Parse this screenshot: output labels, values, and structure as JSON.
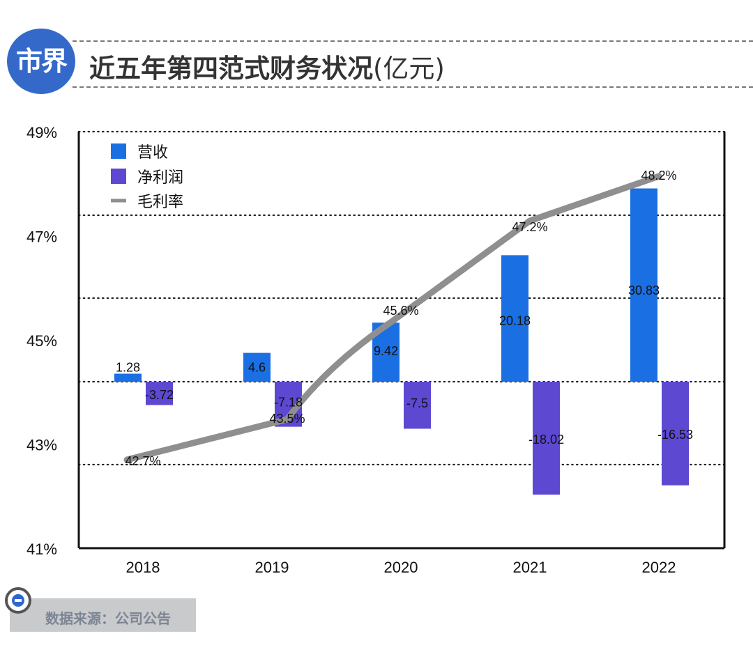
{
  "header": {
    "logo_text": "市界",
    "title": "近五年第四范式财务状况",
    "title_unit": "(亿元)"
  },
  "source": {
    "text": "数据来源：公司公告"
  },
  "colors": {
    "revenue": "#1a6fe3",
    "net_profit": "#5d48d2",
    "gross_margin": "#8f8f8f",
    "logo": "#3569c9"
  },
  "chart_data": {
    "type": "bar",
    "title": "近五年第四范式财务状况(亿元)",
    "categories": [
      "2018",
      "2019",
      "2020",
      "2021",
      "2022"
    ],
    "series": [
      {
        "name": "营收",
        "type": "bar",
        "values": [
          1.28,
          4.6,
          9.42,
          20.18,
          30.83
        ],
        "labels": [
          "1.28",
          "4.6",
          "9.42",
          "20.18",
          "30.83"
        ]
      },
      {
        "name": "净利润",
        "type": "bar",
        "values": [
          -3.72,
          -7.18,
          -7.5,
          -18.02,
          -16.53
        ],
        "labels": [
          "-3.72",
          "-7.18",
          "-7.5",
          "-18.02",
          "-16.53"
        ]
      },
      {
        "name": "毛利率",
        "type": "line",
        "values": [
          42.7,
          43.5,
          45.6,
          47.2,
          48.2
        ],
        "labels": [
          "42.7%",
          "43.5%",
          "45.6%",
          "47.2%",
          "48.2%"
        ]
      }
    ],
    "y_ticks": [
      "49%",
      "47%",
      "45%",
      "43%",
      "41%"
    ],
    "ylim_percent": [
      41,
      49
    ],
    "legend": [
      "营收",
      "净利润",
      "毛利率"
    ],
    "legend_position": "top-left",
    "grid": "horizontal dotted",
    "xlabel": "",
    "ylabel": ""
  }
}
